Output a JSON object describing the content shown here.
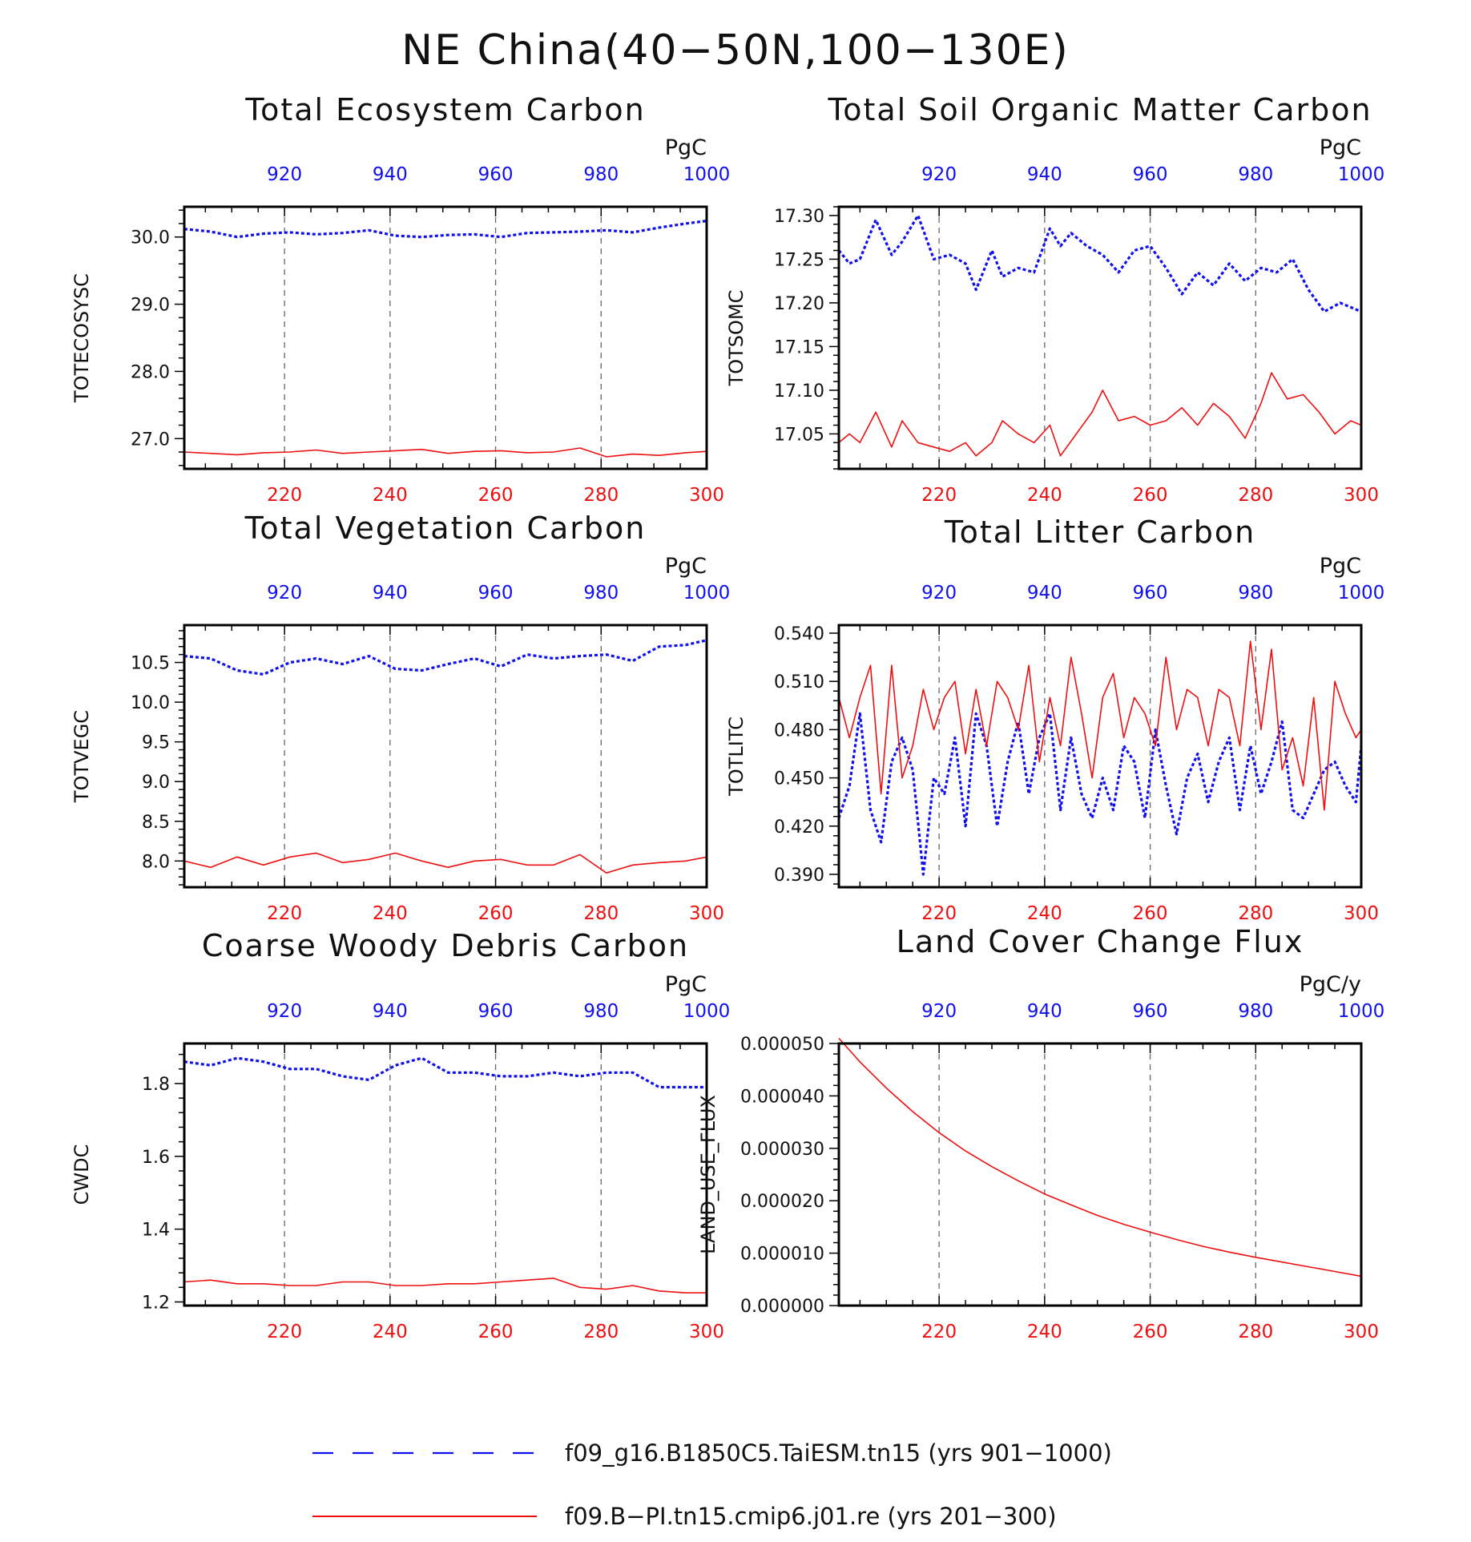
{
  "title": "NE China(40−50N,100−130E)",
  "colors": {
    "run_a": "#1010ee",
    "run_b": "#ee1010",
    "grid": "#666666"
  },
  "legend": [
    {
      "label": "f09_g16.B1850C5.TaiESM.tn15 (yrs 901−1000)",
      "style": "dashed",
      "color": "#1010ee"
    },
    {
      "label": "f09.B−PI.tn15.cmip6.j01.re (yrs 201−300)",
      "style": "solid",
      "color": "#ee1010"
    }
  ],
  "chart_data": [
    {
      "type": "line",
      "title": "Total Ecosystem Carbon",
      "ylabel": "TOTECOSYSC",
      "units": "PgC",
      "top_axis": {
        "range": [
          901,
          1000
        ],
        "ticks": [
          "920",
          "940",
          "960",
          "980",
          "1000"
        ]
      },
      "bottom_axis": {
        "range": [
          201,
          300
        ],
        "ticks": [
          "220",
          "240",
          "260",
          "280",
          "300"
        ]
      },
      "ylim": [
        26.55,
        30.45
      ],
      "yticks": [
        "27.0",
        "28.0",
        "29.0",
        "30.0"
      ],
      "grid": "dashed vertical",
      "series": [
        {
          "color": "#1010ee",
          "style": "dashed",
          "x": [
            901,
            906,
            911,
            916,
            921,
            926,
            931,
            936,
            941,
            946,
            951,
            956,
            961,
            966,
            971,
            976,
            981,
            986,
            991,
            996,
            1000
          ],
          "values": [
            30.12,
            30.08,
            30.0,
            30.05,
            30.07,
            30.04,
            30.06,
            30.1,
            30.02,
            30.0,
            30.03,
            30.04,
            30.0,
            30.06,
            30.07,
            30.08,
            30.1,
            30.07,
            30.14,
            30.2,
            30.24
          ]
        },
        {
          "color": "#ee1010",
          "style": "solid",
          "x": [
            201,
            206,
            211,
            216,
            221,
            226,
            231,
            236,
            241,
            246,
            251,
            256,
            261,
            266,
            271,
            276,
            281,
            286,
            291,
            296,
            300
          ],
          "values": [
            26.8,
            26.78,
            26.76,
            26.79,
            26.8,
            26.83,
            26.78,
            26.8,
            26.82,
            26.84,
            26.78,
            26.81,
            26.82,
            26.79,
            26.8,
            26.86,
            26.73,
            26.77,
            26.75,
            26.79,
            26.81
          ]
        }
      ]
    },
    {
      "type": "line",
      "title": "Total Soil Organic Matter Carbon",
      "ylabel": "TOTSOMC",
      "units": "PgC",
      "top_axis": {
        "range": [
          901,
          1000
        ],
        "ticks": [
          "920",
          "940",
          "960",
          "980",
          "1000"
        ]
      },
      "bottom_axis": {
        "range": [
          201,
          300
        ],
        "ticks": [
          "220",
          "240",
          "260",
          "280",
          "300"
        ]
      },
      "ylim": [
        17.01,
        17.31
      ],
      "yticks": [
        "17.05",
        "17.10",
        "17.15",
        "17.20",
        "17.25",
        "17.30"
      ],
      "grid": "dashed vertical",
      "series": [
        {
          "color": "#1010ee",
          "style": "dashed",
          "x": [
            901,
            903,
            905,
            908,
            911,
            913,
            916,
            919,
            922,
            925,
            927,
            930,
            932,
            935,
            938,
            941,
            943,
            945,
            948,
            951,
            954,
            957,
            960,
            963,
            966,
            969,
            972,
            975,
            978,
            981,
            984,
            987,
            990,
            993,
            996,
            1000
          ],
          "values": [
            17.26,
            17.245,
            17.25,
            17.295,
            17.255,
            17.27,
            17.3,
            17.25,
            17.255,
            17.245,
            17.215,
            17.26,
            17.23,
            17.24,
            17.235,
            17.285,
            17.265,
            17.28,
            17.265,
            17.255,
            17.235,
            17.26,
            17.265,
            17.24,
            17.21,
            17.235,
            17.22,
            17.245,
            17.225,
            17.24,
            17.235,
            17.25,
            17.215,
            17.19,
            17.2,
            17.19
          ]
        },
        {
          "color": "#ee1010",
          "style": "solid",
          "x": [
            201,
            203,
            205,
            208,
            211,
            213,
            216,
            219,
            222,
            225,
            227,
            230,
            232,
            235,
            238,
            241,
            243,
            246,
            249,
            251,
            254,
            257,
            260,
            263,
            266,
            269,
            272,
            275,
            278,
            281,
            283,
            286,
            289,
            292,
            295,
            298,
            300
          ],
          "values": [
            17.04,
            17.05,
            17.04,
            17.075,
            17.035,
            17.065,
            17.04,
            17.035,
            17.03,
            17.04,
            17.025,
            17.04,
            17.065,
            17.05,
            17.04,
            17.06,
            17.025,
            17.05,
            17.075,
            17.1,
            17.065,
            17.07,
            17.06,
            17.065,
            17.08,
            17.06,
            17.085,
            17.07,
            17.045,
            17.085,
            17.12,
            17.09,
            17.095,
            17.075,
            17.05,
            17.065,
            17.06
          ]
        }
      ]
    },
    {
      "type": "line",
      "title": "Total Vegetation Carbon",
      "ylabel": "TOTVEGC",
      "units": "PgC",
      "top_axis": {
        "range": [
          901,
          1000
        ],
        "ticks": [
          "920",
          "940",
          "960",
          "980",
          "1000"
        ]
      },
      "bottom_axis": {
        "range": [
          201,
          300
        ],
        "ticks": [
          "220",
          "240",
          "260",
          "280",
          "300"
        ]
      },
      "ylim": [
        7.67,
        10.97
      ],
      "yticks": [
        "8.0",
        "8.5",
        "9.0",
        "9.5",
        "10.0",
        "10.5"
      ],
      "grid": "dashed vertical",
      "series": [
        {
          "color": "#1010ee",
          "style": "dashed",
          "x": [
            901,
            906,
            911,
            916,
            921,
            926,
            931,
            936,
            941,
            946,
            951,
            956,
            961,
            966,
            971,
            976,
            981,
            986,
            991,
            996,
            1000
          ],
          "values": [
            10.58,
            10.55,
            10.4,
            10.35,
            10.5,
            10.55,
            10.48,
            10.58,
            10.42,
            10.4,
            10.48,
            10.55,
            10.45,
            10.6,
            10.55,
            10.58,
            10.6,
            10.52,
            10.7,
            10.72,
            10.78
          ]
        },
        {
          "color": "#ee1010",
          "style": "solid",
          "x": [
            201,
            206,
            211,
            216,
            221,
            226,
            231,
            236,
            241,
            246,
            251,
            256,
            261,
            266,
            271,
            276,
            281,
            286,
            291,
            296,
            300
          ],
          "values": [
            8.0,
            7.92,
            8.05,
            7.95,
            8.05,
            8.1,
            7.98,
            8.02,
            8.1,
            8.0,
            7.92,
            8.0,
            8.02,
            7.95,
            7.95,
            8.08,
            7.85,
            7.95,
            7.98,
            8.0,
            8.05
          ]
        }
      ]
    },
    {
      "type": "line",
      "title": "Total Litter Carbon",
      "ylabel": "TOTLITC",
      "units": "PgC",
      "top_axis": {
        "range": [
          901,
          1000
        ],
        "ticks": [
          "920",
          "940",
          "960",
          "980",
          "1000"
        ]
      },
      "bottom_axis": {
        "range": [
          201,
          300
        ],
        "ticks": [
          "220",
          "240",
          "260",
          "280",
          "300"
        ]
      },
      "ylim": [
        0.382,
        0.545
      ],
      "yticks": [
        "0.390",
        "0.420",
        "0.450",
        "0.480",
        "0.510",
        "0.540"
      ],
      "grid": "dashed vertical",
      "series": [
        {
          "color": "#1010ee",
          "style": "dashed",
          "x": [
            901,
            903,
            905,
            907,
            909,
            911,
            913,
            915,
            917,
            919,
            921,
            923,
            925,
            927,
            929,
            931,
            933,
            935,
            937,
            939,
            941,
            943,
            945,
            947,
            949,
            951,
            953,
            955,
            957,
            959,
            961,
            963,
            965,
            967,
            969,
            971,
            973,
            975,
            977,
            979,
            981,
            983,
            985,
            987,
            989,
            991,
            993,
            995,
            997,
            999,
            1000
          ],
          "values": [
            0.425,
            0.445,
            0.49,
            0.43,
            0.41,
            0.46,
            0.475,
            0.455,
            0.39,
            0.45,
            0.44,
            0.475,
            0.42,
            0.49,
            0.47,
            0.42,
            0.46,
            0.485,
            0.44,
            0.475,
            0.49,
            0.43,
            0.475,
            0.44,
            0.425,
            0.45,
            0.43,
            0.47,
            0.46,
            0.425,
            0.48,
            0.445,
            0.415,
            0.45,
            0.465,
            0.435,
            0.46,
            0.475,
            0.43,
            0.47,
            0.44,
            0.46,
            0.485,
            0.43,
            0.425,
            0.44,
            0.455,
            0.46,
            0.445,
            0.435,
            0.47
          ]
        },
        {
          "color": "#ee1010",
          "style": "solid",
          "x": [
            201,
            203,
            205,
            207,
            209,
            211,
            213,
            215,
            217,
            219,
            221,
            223,
            225,
            227,
            229,
            231,
            233,
            235,
            237,
            239,
            241,
            243,
            245,
            247,
            249,
            251,
            253,
            255,
            257,
            259,
            261,
            263,
            265,
            267,
            269,
            271,
            273,
            275,
            277,
            279,
            281,
            283,
            285,
            287,
            289,
            291,
            293,
            295,
            297,
            299,
            300
          ],
          "values": [
            0.5,
            0.475,
            0.5,
            0.52,
            0.44,
            0.52,
            0.45,
            0.47,
            0.505,
            0.48,
            0.5,
            0.51,
            0.465,
            0.505,
            0.47,
            0.51,
            0.5,
            0.48,
            0.52,
            0.46,
            0.5,
            0.47,
            0.525,
            0.49,
            0.45,
            0.5,
            0.515,
            0.475,
            0.5,
            0.49,
            0.47,
            0.525,
            0.48,
            0.505,
            0.5,
            0.47,
            0.505,
            0.5,
            0.47,
            0.535,
            0.48,
            0.53,
            0.455,
            0.475,
            0.445,
            0.5,
            0.43,
            0.51,
            0.49,
            0.475,
            0.48
          ]
        }
      ]
    },
    {
      "type": "line",
      "title": "Coarse Woody Debris Carbon",
      "ylabel": "CWDC",
      "units": "PgC",
      "top_axis": {
        "range": [
          901,
          1000
        ],
        "ticks": [
          "920",
          "940",
          "960",
          "980",
          "1000"
        ]
      },
      "bottom_axis": {
        "range": [
          201,
          300
        ],
        "ticks": [
          "220",
          "240",
          "260",
          "280",
          "300"
        ]
      },
      "ylim": [
        1.19,
        1.91
      ],
      "yticks": [
        "1.2",
        "1.4",
        "1.6",
        "1.8"
      ],
      "grid": "dashed vertical",
      "series": [
        {
          "color": "#1010ee",
          "style": "dashed",
          "x": [
            901,
            906,
            911,
            916,
            921,
            926,
            931,
            936,
            941,
            946,
            951,
            956,
            961,
            966,
            971,
            976,
            981,
            986,
            991,
            996,
            1000
          ],
          "values": [
            1.86,
            1.85,
            1.87,
            1.86,
            1.84,
            1.84,
            1.82,
            1.81,
            1.85,
            1.87,
            1.83,
            1.83,
            1.82,
            1.82,
            1.83,
            1.82,
            1.83,
            1.83,
            1.79,
            1.79,
            1.79
          ]
        },
        {
          "color": "#ee1010",
          "style": "solid",
          "x": [
            201,
            206,
            211,
            216,
            221,
            226,
            231,
            236,
            241,
            246,
            251,
            256,
            261,
            266,
            271,
            276,
            281,
            286,
            291,
            296,
            300
          ],
          "values": [
            1.255,
            1.26,
            1.25,
            1.25,
            1.245,
            1.245,
            1.255,
            1.255,
            1.245,
            1.245,
            1.25,
            1.25,
            1.255,
            1.26,
            1.265,
            1.24,
            1.235,
            1.245,
            1.23,
            1.225,
            1.225
          ]
        }
      ]
    },
    {
      "type": "line",
      "title": "Land Cover Change Flux",
      "ylabel": "LAND_USE_FLUX",
      "units": "PgC/y",
      "top_axis": {
        "range": [
          901,
          1000
        ],
        "ticks": [
          "920",
          "940",
          "960",
          "980",
          "1000"
        ]
      },
      "bottom_axis": {
        "range": [
          201,
          300
        ],
        "ticks": [
          "220",
          "240",
          "260",
          "280",
          "300"
        ]
      },
      "ylim": [
        0.0,
        5e-05
      ],
      "yticks": [
        "0.000000",
        "0.000010",
        "0.000020",
        "0.000030",
        "0.000040",
        "0.000050"
      ],
      "grid": "dashed vertical",
      "series": [
        {
          "color": "#ee1010",
          "style": "solid",
          "x": [
            201,
            205,
            210,
            215,
            220,
            225,
            230,
            235,
            240,
            245,
            250,
            255,
            260,
            265,
            270,
            275,
            280,
            285,
            290,
            295,
            300
          ],
          "values": [
            5.1e-05,
            4.65e-05,
            4.15e-05,
            3.7e-05,
            3.3e-05,
            2.95e-05,
            2.65e-05,
            2.38e-05,
            2.13e-05,
            1.92e-05,
            1.72e-05,
            1.55e-05,
            1.4e-05,
            1.26e-05,
            1.13e-05,
            1.02e-05,
            9.2e-06,
            8.3e-06,
            7.4e-06,
            6.5e-06,
            5.6e-06
          ]
        }
      ]
    }
  ]
}
